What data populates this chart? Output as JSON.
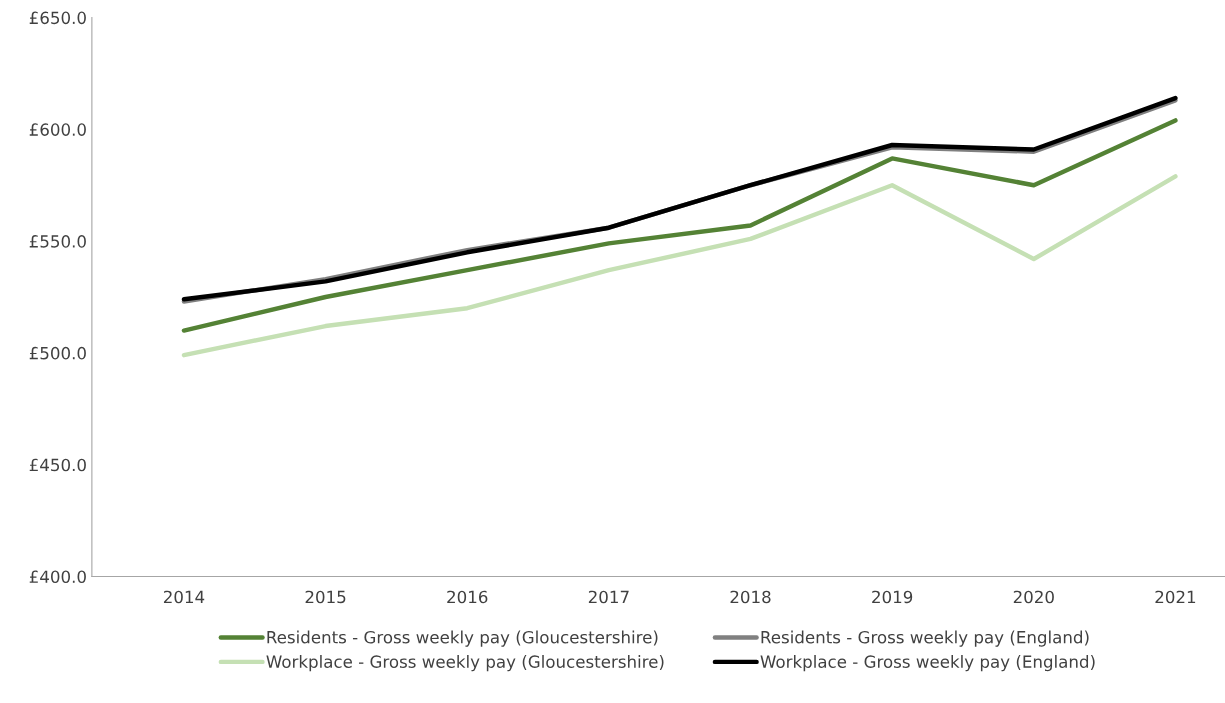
{
  "chart_data": {
    "type": "line",
    "categories": [
      "2014",
      "2015",
      "2016",
      "2017",
      "2018",
      "2019",
      "2020",
      "2021"
    ],
    "series": [
      {
        "name": "Residents - Gross weekly pay (Gloucestershire)",
        "color": "#548235",
        "values": [
          510,
          525,
          537,
          549,
          557,
          587,
          575,
          604
        ]
      },
      {
        "name": "Workplace - Gross weekly pay (Gloucestershire)",
        "color": "#c5e0b4",
        "values": [
          499,
          512,
          520,
          537,
          551,
          575,
          542,
          579
        ]
      },
      {
        "name": "Residents - Gross weekly pay (England)",
        "color": "#808080",
        "values": [
          523,
          533,
          546,
          556,
          575,
          592,
          590,
          613
        ]
      },
      {
        "name": "Workplace - Gross weekly pay (England)",
        "color": "#000000",
        "values": [
          524,
          532,
          545,
          556,
          575,
          593,
          591,
          614
        ]
      }
    ],
    "ylim": [
      400,
      650
    ],
    "yticks": [
      {
        "value": 400,
        "label": "£400.0"
      },
      {
        "value": 450,
        "label": "£450.0"
      },
      {
        "value": 500,
        "label": "£500.0"
      },
      {
        "value": 550,
        "label": "£550.0"
      },
      {
        "value": 600,
        "label": "£600.0"
      },
      {
        "value": 650,
        "label": "£650.0"
      }
    ],
    "grid": false,
    "legend": "bottom",
    "marker": "none",
    "line_style": "solid"
  }
}
